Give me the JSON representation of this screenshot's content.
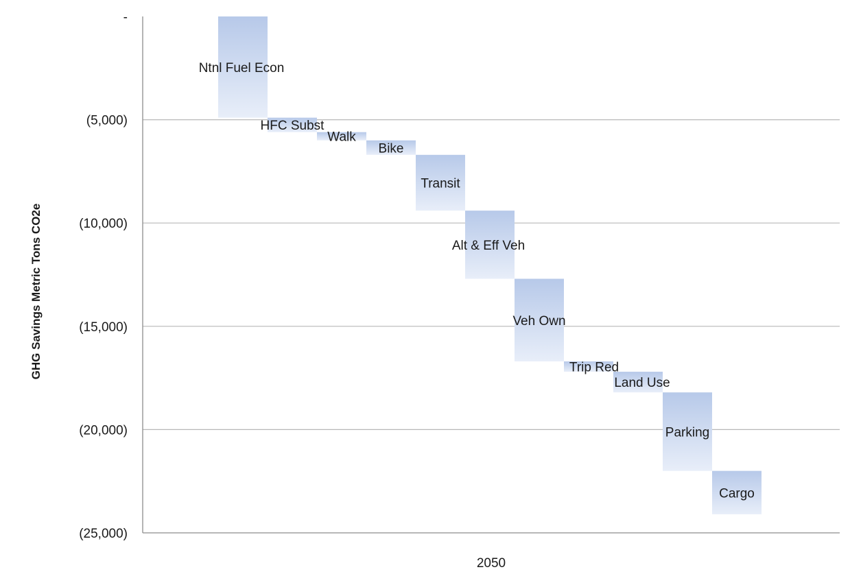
{
  "chart_data": {
    "type": "bar",
    "subtype": "waterfall",
    "title": "",
    "xlabel": "",
    "ylabel": "GHG Savings Metric Tons CO2e",
    "x_category": "2050",
    "ylim": [
      -25000,
      0
    ],
    "y_ticks": [
      0,
      -5000,
      -10000,
      -15000,
      -20000,
      -25000
    ],
    "y_tick_labels": [
      "-",
      "(5,000)",
      "(10,000)",
      "(15,000)",
      "(20,000)",
      "(25,000)"
    ],
    "grid": true,
    "legend": "none",
    "bar_color_top": "#b7c9e9",
    "bar_color_bottom": "#e8eef9",
    "categories": [
      "Ntnl Fuel Econ",
      "HFC Subst",
      "Walk",
      "Bike",
      "Transit",
      "Alt & Eff Veh",
      "Veh Own",
      "Trip Red",
      "Land Use",
      "Parking",
      "Cargo"
    ],
    "values": [
      -4900,
      -700,
      -400,
      -700,
      -2700,
      -3300,
      -4000,
      -500,
      -1000,
      -3800,
      -2100
    ],
    "cumulative_start": [
      0,
      -4900,
      -5600,
      -6000,
      -6700,
      -9400,
      -12700,
      -16700,
      -17200,
      -18200,
      -22000
    ],
    "cumulative_end": [
      -4900,
      -5600,
      -6000,
      -6700,
      -9400,
      -12700,
      -16700,
      -17200,
      -18200,
      -22000,
      -24100
    ]
  }
}
